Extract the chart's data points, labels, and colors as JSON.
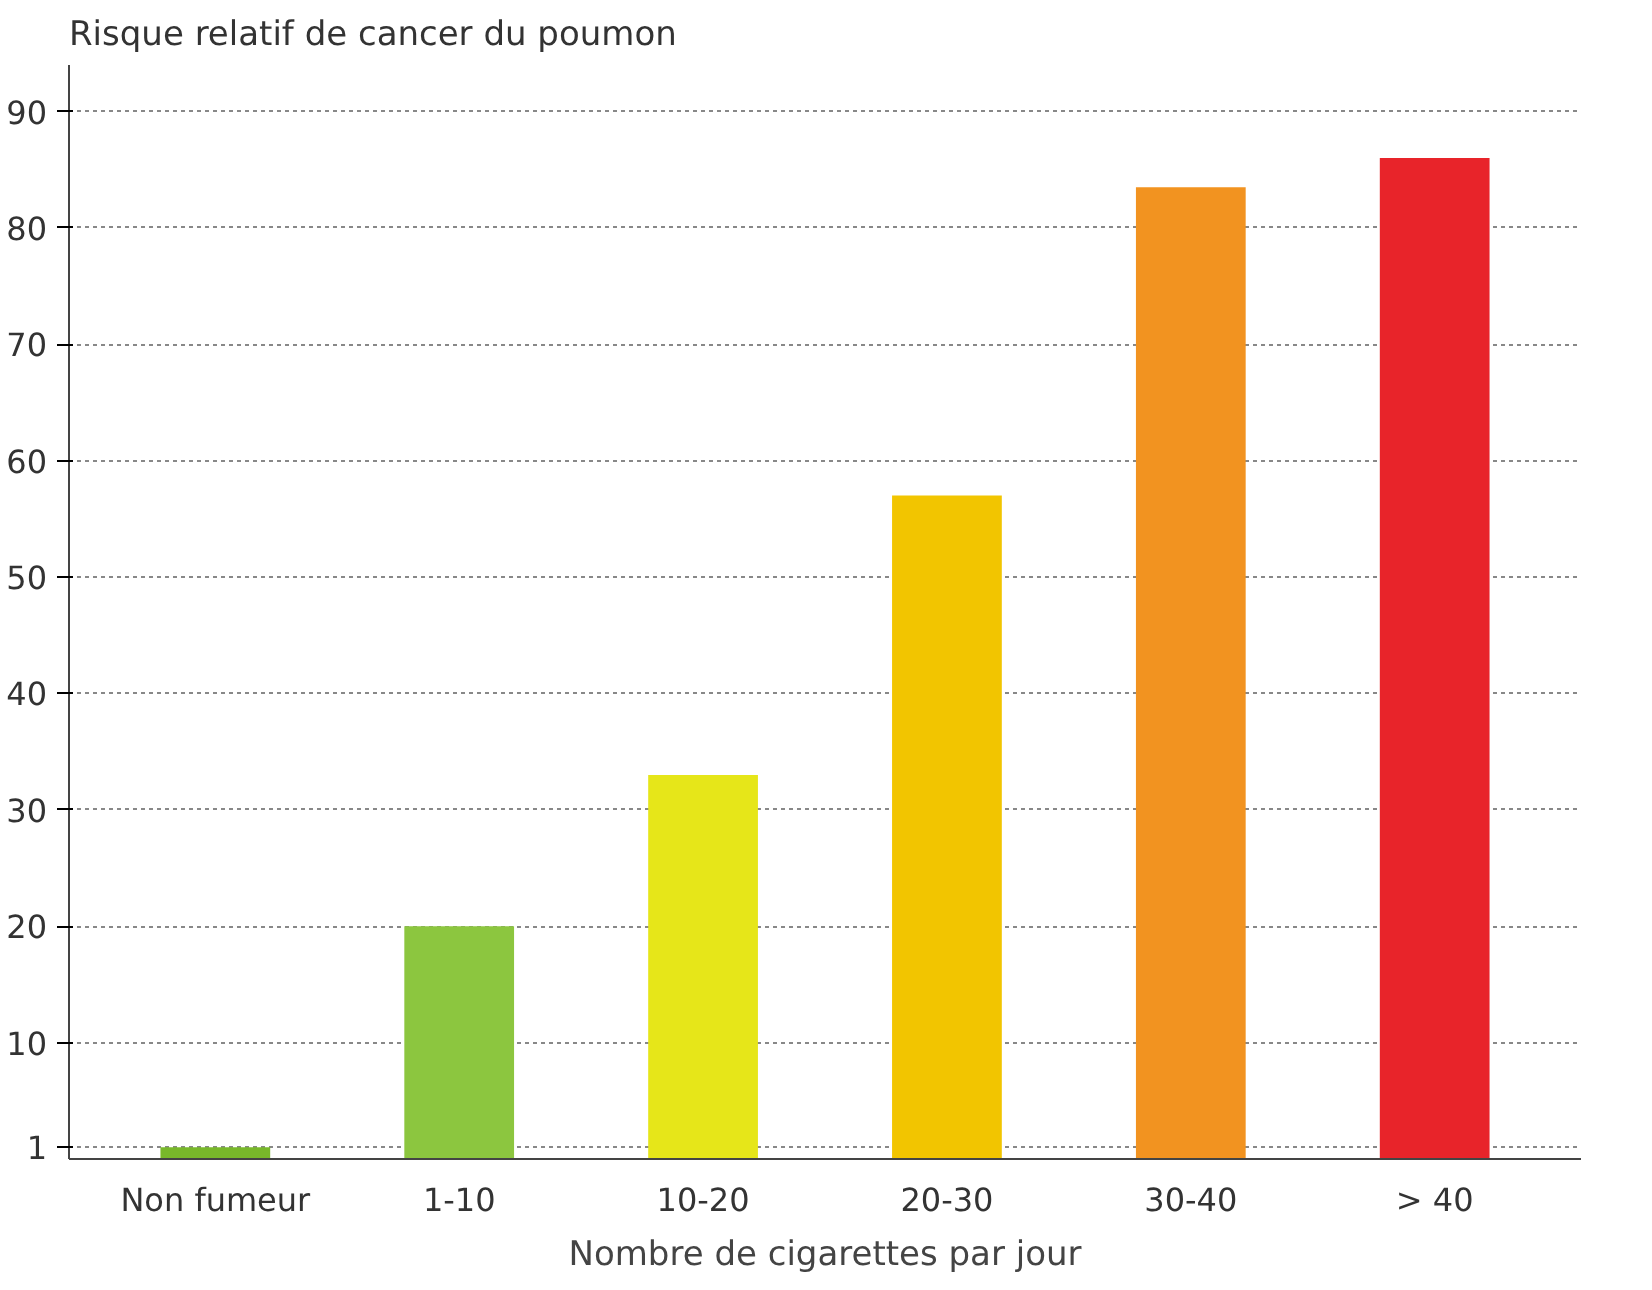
{
  "chart_data": {
    "type": "bar",
    "ylabel": "Risque relatif de cancer du poumon",
    "xlabel": "Nombre de cigarettes par jour",
    "categories": [
      "Non fumeur",
      "1-10",
      "10-20",
      "20-30",
      "30-40",
      "> 40"
    ],
    "values": [
      1,
      20,
      33,
      57,
      83.5,
      86
    ],
    "colors": [
      "#78b82a",
      "#8cc63f",
      "#e6e619",
      "#f2c500",
      "#f29320",
      "#e8242a"
    ],
    "ylim": [
      0,
      94
    ],
    "yticks": [
      1,
      10,
      20,
      30,
      40,
      50,
      60,
      70,
      80,
      90
    ],
    "grid": "y"
  }
}
